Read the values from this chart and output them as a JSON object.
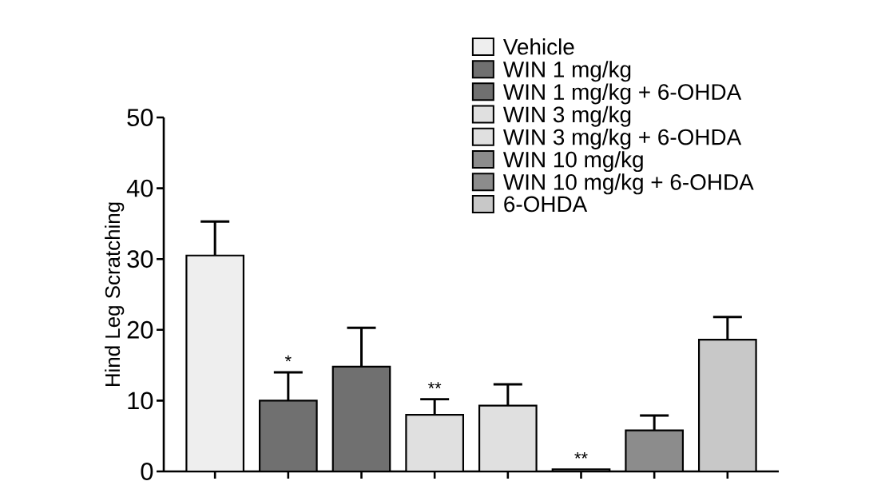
{
  "chart_data": {
    "type": "bar",
    "ylabel": "Hind Leg Scratching",
    "categories": [
      null,
      null,
      null,
      null,
      null,
      null,
      null,
      null
    ],
    "series": [
      {
        "name": "Vehicle",
        "color": "#eeeeee",
        "values": [
          30.5,
          null,
          null,
          null,
          null,
          null,
          null,
          null
        ],
        "errors": [
          [
            30.5,
            35.3
          ],
          null,
          null,
          null,
          null,
          null,
          null,
          null
        ]
      },
      {
        "name": "WIN 1 mg/kg",
        "color": "#707070",
        "values": [
          null,
          10.0,
          null,
          null,
          null,
          null,
          null,
          null
        ],
        "errors": [
          null,
          [
            10.0,
            14.0
          ],
          null,
          null,
          null,
          null,
          null,
          null
        ],
        "value_labels": [
          null,
          "*",
          null,
          null,
          null,
          null,
          null,
          null
        ]
      },
      {
        "name": "WIN 1 mg/kg + 6-OHDA",
        "color": "#707070",
        "values": [
          null,
          null,
          14.8,
          null,
          null,
          null,
          null,
          null
        ],
        "errors": [
          null,
          null,
          [
            14.8,
            20.3
          ],
          null,
          null,
          null,
          null,
          null
        ]
      },
      {
        "name": "WIN 3 mg/kg",
        "color": "#e0e0e0",
        "values": [
          null,
          null,
          null,
          8.0,
          null,
          null,
          null,
          null
        ],
        "errors": [
          null,
          null,
          null,
          [
            8.0,
            10.2
          ],
          null,
          null,
          null,
          null
        ],
        "value_labels": [
          null,
          null,
          null,
          "**",
          null,
          null,
          null,
          null
        ]
      },
      {
        "name": "WIN 3 mg/kg + 6-OHDA",
        "color": "#e0e0e0",
        "values": [
          null,
          null,
          null,
          null,
          9.3,
          null,
          null,
          null
        ],
        "errors": [
          null,
          null,
          null,
          null,
          [
            9.3,
            12.3
          ],
          null,
          null,
          null
        ]
      },
      {
        "name": "WIN 10 mg/kg",
        "color": "#8c8c8c",
        "values": [
          null,
          null,
          null,
          null,
          null,
          0.3,
          null,
          null
        ],
        "value_labels": [
          null,
          null,
          null,
          null,
          null,
          "**",
          null,
          null
        ]
      },
      {
        "name": "WIN 10 mg/kg + 6-OHDA",
        "color": "#8c8c8c",
        "values": [
          null,
          null,
          null,
          null,
          null,
          null,
          5.8,
          null
        ],
        "errors": [
          null,
          null,
          null,
          null,
          null,
          null,
          [
            5.8,
            7.9
          ],
          null
        ]
      },
      {
        "name": "6-OHDA",
        "color": "#c8c8c8",
        "values": [
          null,
          null,
          null,
          null,
          null,
          null,
          null,
          18.6
        ],
        "errors": [
          null,
          null,
          null,
          null,
          null,
          null,
          null,
          [
            18.6,
            21.8
          ]
        ]
      }
    ],
    "ylim": [
      0,
      50
    ],
    "yticks": [
      0,
      10,
      20,
      30,
      40,
      50
    ],
    "legend": "top right",
    "tick_labels": "y"
  }
}
